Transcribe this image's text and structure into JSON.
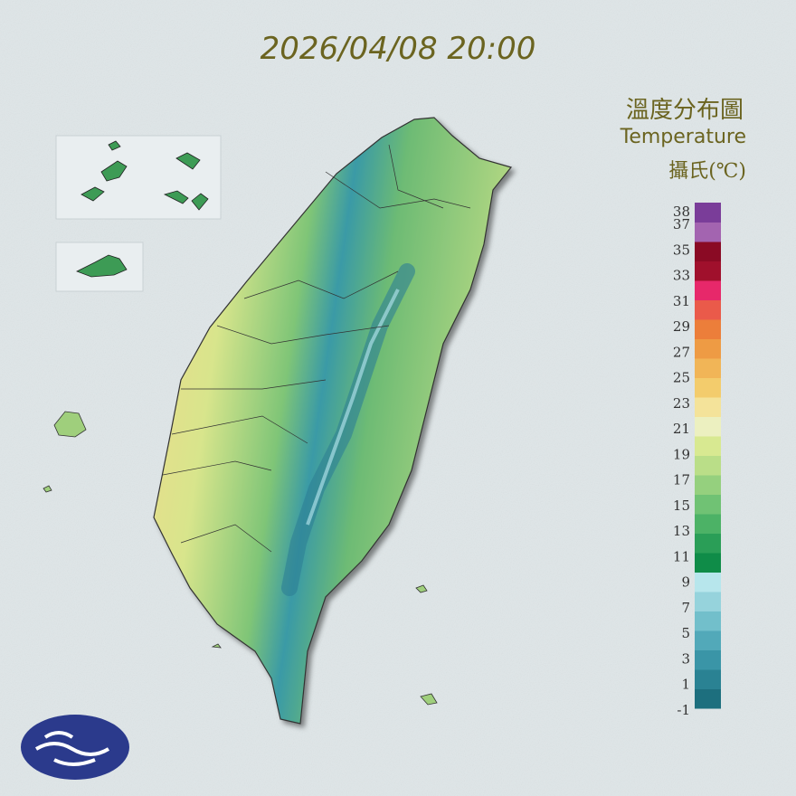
{
  "title": "2026/04/08 20:00",
  "legend": {
    "title_zh": "溫度分布圖",
    "title_en": "Temperature",
    "unit": "攝氏(℃)",
    "labels": [
      38,
      37,
      35,
      33,
      31,
      29,
      27,
      25,
      23,
      21,
      19,
      17,
      15,
      13,
      11,
      9,
      7,
      5,
      3,
      1,
      -1
    ],
    "colors": [
      "#1d6f7e",
      "#2a8293",
      "#3a95a7",
      "#52a9b9",
      "#72bfcb",
      "#96d3dc",
      "#b7e6ec",
      "#0f8c48",
      "#2a9e57",
      "#4cb266",
      "#70c274",
      "#95d07e",
      "#bade88",
      "#d8e991",
      "#ecf0c0",
      "#f4e39a",
      "#f3cc6c",
      "#f1b557",
      "#ee9b44",
      "#ec7e3a",
      "#ea5a4a",
      "#e7286a",
      "#a0102c",
      "#8a0a24",
      "#a364b0",
      "#7a3d99"
    ]
  }
}
